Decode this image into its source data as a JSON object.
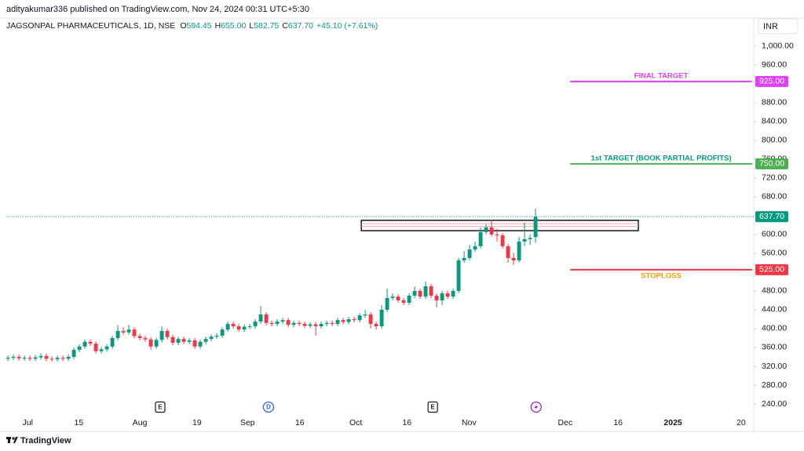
{
  "publisher": "adityakumar336 published on TradingView.com, Nov 24, 2024 00:31 UTC+5:30",
  "brand": "TradingView",
  "chart_data": {
    "type": "candlestick",
    "title": "JAGSONPAL PHARMACEUTICALS, 1D, NSE",
    "ohlc_header": [
      {
        "label": "O",
        "value": "594.45"
      },
      {
        "label": "H",
        "value": "655.00"
      },
      {
        "label": "L",
        "value": "582.75"
      },
      {
        "label": "C",
        "value": "637.70"
      }
    ],
    "change": "+45.10 (+7.61%)",
    "currency": "INR",
    "up_color": "#089981",
    "down_color": "#f23645",
    "open": [
      336,
      338,
      340,
      337,
      338,
      336,
      339,
      342,
      336,
      335,
      338,
      336,
      340,
      355,
      362,
      372,
      368,
      352,
      356,
      362,
      380,
      395,
      392,
      398,
      384,
      380,
      377,
      362,
      376,
      395,
      382,
      370,
      378,
      372,
      375,
      362,
      372,
      378,
      383,
      385,
      398,
      410,
      405,
      398,
      404,
      405,
      415,
      430,
      412,
      410,
      415,
      418,
      408,
      412,
      410,
      406,
      409,
      405,
      410,
      412,
      410,
      418,
      414,
      420,
      418,
      428,
      430,
      410,
      405,
      440,
      465,
      468,
      460,
      455,
      470,
      480,
      468,
      490,
      470,
      460,
      475,
      468,
      480,
      545,
      550,
      568,
      575,
      605,
      615,
      600,
      598,
      575,
      550,
      545,
      585,
      590,
      594.45
    ],
    "high": [
      343,
      345,
      345,
      343,
      343,
      344,
      348,
      347,
      341,
      343,
      343,
      345,
      360,
      367,
      377,
      377,
      373,
      361,
      367,
      385,
      407,
      403,
      408,
      403,
      389,
      385,
      382,
      381,
      405,
      400,
      387,
      383,
      383,
      380,
      380,
      377,
      383,
      388,
      390,
      403,
      415,
      415,
      410,
      409,
      410,
      420,
      448,
      435,
      417,
      420,
      423,
      423,
      417,
      417,
      415,
      414,
      414,
      415,
      417,
      417,
      423,
      423,
      425,
      425,
      433,
      440,
      435,
      415,
      450,
      485,
      475,
      473,
      465,
      475,
      490,
      485,
      500,
      495,
      475,
      480,
      480,
      485,
      550,
      565,
      578,
      585,
      615,
      622,
      632,
      612,
      603,
      580,
      560,
      595,
      625,
      600,
      655
    ],
    "low": [
      331,
      333,
      332,
      332,
      331,
      331,
      334,
      331,
      330,
      330,
      331,
      331,
      335,
      350,
      357,
      363,
      347,
      347,
      351,
      357,
      375,
      387,
      387,
      379,
      375,
      372,
      355,
      357,
      371,
      377,
      365,
      365,
      367,
      367,
      357,
      357,
      367,
      373,
      378,
      380,
      393,
      400,
      393,
      393,
      399,
      400,
      410,
      407,
      405,
      405,
      410,
      403,
      403,
      405,
      401,
      401,
      385,
      400,
      405,
      405,
      405,
      409,
      409,
      413,
      413,
      423,
      400,
      398,
      400,
      435,
      460,
      455,
      450,
      450,
      465,
      463,
      463,
      465,
      445,
      450,
      463,
      463,
      475,
      540,
      545,
      563,
      570,
      600,
      595,
      585,
      570,
      540,
      535,
      540,
      575,
      578,
      582.75
    ],
    "close": [
      338,
      340,
      337,
      338,
      336,
      339,
      342,
      336,
      335,
      338,
      336,
      340,
      355,
      362,
      372,
      368,
      352,
      356,
      362,
      380,
      395,
      392,
      398,
      384,
      380,
      377,
      362,
      376,
      395,
      382,
      370,
      378,
      372,
      375,
      362,
      372,
      378,
      383,
      385,
      398,
      410,
      405,
      398,
      404,
      405,
      415,
      430,
      412,
      410,
      415,
      418,
      408,
      412,
      410,
      406,
      409,
      405,
      410,
      412,
      410,
      418,
      414,
      420,
      418,
      428,
      430,
      410,
      405,
      440,
      465,
      468,
      460,
      455,
      470,
      480,
      468,
      490,
      470,
      460,
      475,
      468,
      480,
      545,
      550,
      568,
      575,
      605,
      615,
      600,
      598,
      575,
      550,
      545,
      585,
      590,
      592.6,
      637.7
    ],
    "xlim": [
      -0.3,
      135.7
    ],
    "ylim": [
      215,
      1023
    ],
    "xticks": [
      {
        "value": 3.6,
        "label": "Jul"
      },
      {
        "value": 12.9,
        "label": "15"
      },
      {
        "value": 24,
        "label": "Aug"
      },
      {
        "value": 34.4,
        "label": "19"
      },
      {
        "value": 43.6,
        "label": "Sep"
      },
      {
        "value": 53.1,
        "label": "16"
      },
      {
        "value": 63.3,
        "label": "Oct"
      },
      {
        "value": 72.6,
        "label": "16"
      },
      {
        "value": 83.9,
        "label": "Nov"
      },
      {
        "value": 101.4,
        "label": "Dec"
      },
      {
        "value": 111,
        "label": "16"
      },
      {
        "value": 121,
        "label": "2025",
        "bold": true
      },
      {
        "value": 133.4,
        "label": "20"
      }
    ],
    "yticks": [
      {
        "value": 240,
        "label": "240.00"
      },
      {
        "value": 280,
        "label": "280.00"
      },
      {
        "value": 320,
        "label": "320.00"
      },
      {
        "value": 360,
        "label": "360.00"
      },
      {
        "value": 400,
        "label": "400.00"
      },
      {
        "value": 440,
        "label": "440.00"
      },
      {
        "value": 480,
        "label": "480.00"
      },
      {
        "value": 520,
        "label": "520.00"
      },
      {
        "value": 560,
        "label": "560.00"
      },
      {
        "value": 600,
        "label": "600.00"
      },
      {
        "value": 640,
        "label": "640.00"
      },
      {
        "value": 680,
        "label": "680.00"
      },
      {
        "value": 720,
        "label": "720.00"
      },
      {
        "value": 760,
        "label": "760.00"
      },
      {
        "value": 800,
        "label": "800.00"
      },
      {
        "value": 840,
        "label": "840.00"
      },
      {
        "value": 880,
        "label": "880.00"
      },
      {
        "value": 920,
        "label": "920.00"
      },
      {
        "value": 960,
        "label": "960.00"
      },
      {
        "value": 1000,
        "label": "1,000.00"
      }
    ],
    "last_price": {
      "value": 637.7,
      "label": "637.70",
      "color": "#089981"
    },
    "levels": [
      {
        "value": 925,
        "label": "925.00",
        "text": "FINAL TARGET",
        "color": "#e040fb",
        "text_color": "#e040fb",
        "x": [
          102.3,
          135.4
        ]
      },
      {
        "value": 750,
        "label": "750.00",
        "text": "1st TARGET (BOOK PARTIAL PROFITS)",
        "color": "#4caf50",
        "text_color": "#089981",
        "x": [
          102.3,
          135.4
        ]
      },
      {
        "value": 525,
        "label": "525.00",
        "text": "STOPLOSS",
        "color": "#f23645",
        "text_color": "#ff9800",
        "x": [
          102.3,
          135.4
        ]
      }
    ],
    "zone": {
      "x": [
        64.3,
        114.7
      ],
      "y": [
        608,
        630
      ],
      "inner": [
        617,
        623
      ]
    },
    "events": [
      {
        "x": 27.7,
        "label": "E"
      },
      {
        "x": 47.4,
        "label": "D"
      },
      {
        "x": 77.3,
        "label": "E"
      },
      {
        "x": 96.1
      }
    ]
  }
}
